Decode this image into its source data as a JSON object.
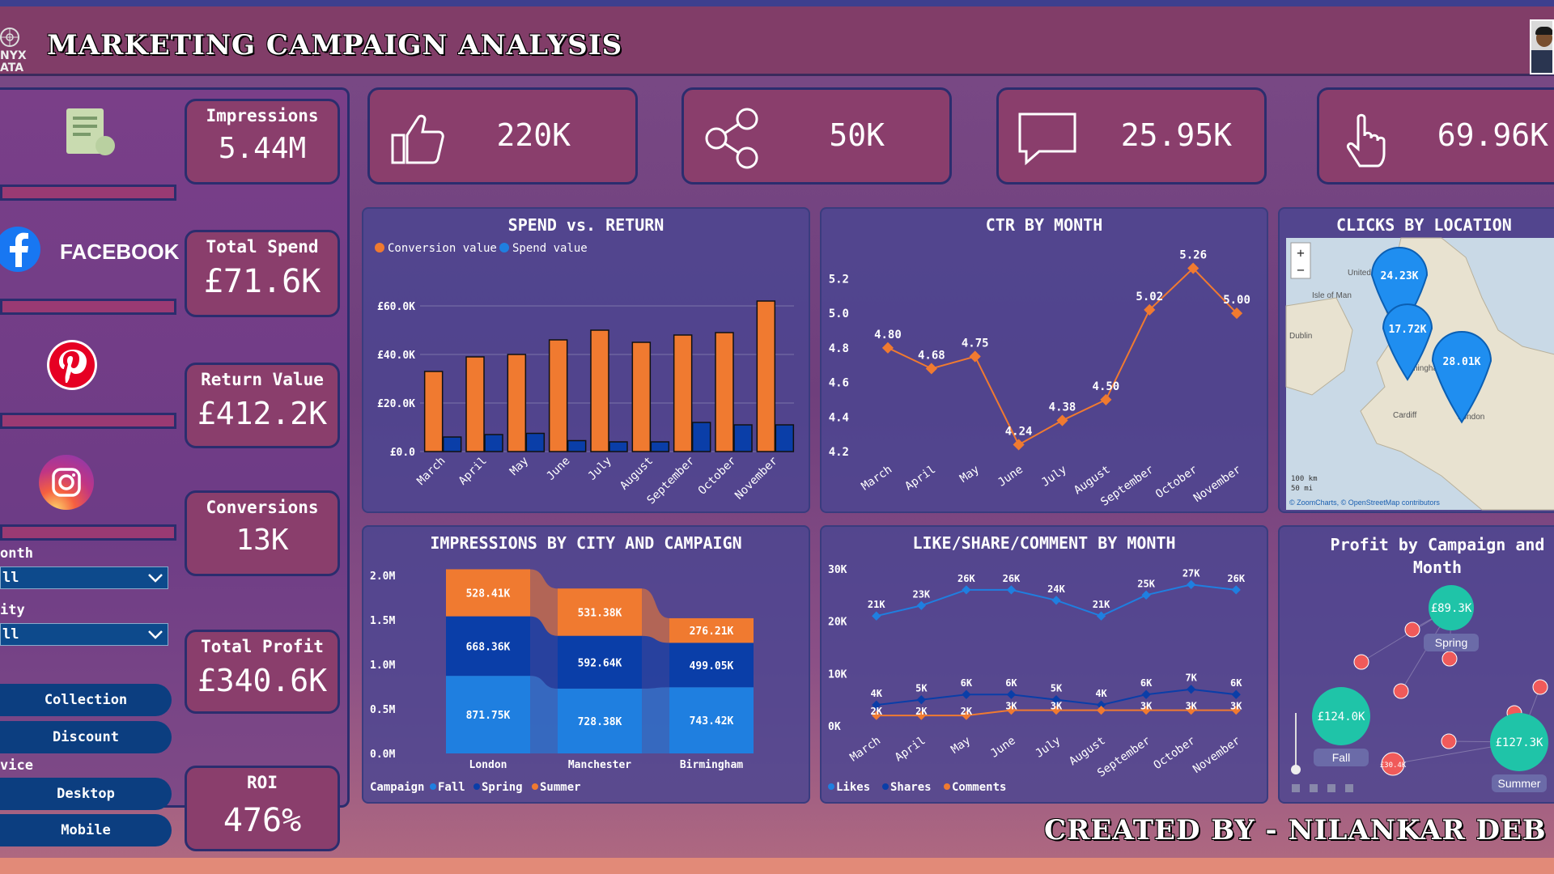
{
  "header": {
    "title": "MARKETING CAMPAIGN ANALYSIS",
    "logo_text": "NYX\nATA"
  },
  "sidebar": {
    "channels": [
      {
        "name": "report",
        "icon": "report-icon"
      },
      {
        "name": "facebook",
        "label": "FACEBOOK",
        "icon": "facebook-icon"
      },
      {
        "name": "pinterest",
        "icon": "pinterest-icon"
      },
      {
        "name": "instagram",
        "icon": "instagram-icon"
      }
    ],
    "filters": [
      {
        "label": "onth",
        "value": "ll"
      },
      {
        "label": "ity",
        "value": "ll"
      }
    ],
    "campaign_buttons": [
      "Collection",
      "Discount"
    ],
    "device_label": "vice",
    "device_buttons": [
      "Desktop",
      "Mobile"
    ]
  },
  "kpis": [
    {
      "label": "Impressions",
      "value": "5.44M"
    },
    {
      "label": "Total Spend",
      "value": "£71.6K"
    },
    {
      "label": "Return Value",
      "value": "£412.2K"
    },
    {
      "label": "Conversions",
      "value": "13K"
    },
    {
      "label": "Total Profit",
      "value": "£340.6K"
    },
    {
      "label": "ROI",
      "value": "476%"
    }
  ],
  "top_cards": [
    {
      "icon": "thumbs-up-icon",
      "value": "220K"
    },
    {
      "icon": "share-icon",
      "value": "50K"
    },
    {
      "icon": "comment-icon",
      "value": "25.95K"
    },
    {
      "icon": "click-hand-icon",
      "value": "69.96K"
    }
  ],
  "footer": {
    "text": "CREATED BY - NILANKAR DEB"
  },
  "colors": {
    "orange": "#f07a30",
    "blue": "#1f7fe0",
    "dark_blue": "#0a3ea8",
    "teal": "#1fc4a8",
    "red": "#f05a5a"
  },
  "chart_data": [
    {
      "type": "bar",
      "title": "SPEND vs. RETURN",
      "categories": [
        "March",
        "April",
        "May",
        "June",
        "July",
        "August",
        "September",
        "October",
        "November"
      ],
      "series": [
        {
          "name": "Conversion value",
          "values": [
            33,
            39,
            40,
            46,
            50,
            45,
            48,
            49,
            62
          ]
        },
        {
          "name": "Spend value",
          "values": [
            6,
            7,
            7.5,
            4.5,
            4,
            4,
            12,
            11,
            11
          ]
        }
      ],
      "yticks": [
        "£0.0",
        "£20.0K",
        "£40.0K",
        "£60.0K"
      ],
      "ylim": [
        0,
        70
      ],
      "legend": "top-left"
    },
    {
      "type": "line",
      "title": "CTR BY MONTH",
      "categories": [
        "March",
        "April",
        "May",
        "June",
        "July",
        "August",
        "September",
        "October",
        "November"
      ],
      "values": [
        4.8,
        4.68,
        4.75,
        4.24,
        4.38,
        4.5,
        5.02,
        5.26,
        5.0
      ],
      "labels": [
        "4.80",
        "4.68",
        "4.75",
        "4.24",
        "4.38",
        "4.50",
        "5.02",
        "5.26",
        "5.00"
      ],
      "yticks": [
        "4.2",
        "4.4",
        "4.6",
        "4.8",
        "5.0",
        "5.2"
      ],
      "ylim": [
        4.2,
        5.3
      ]
    },
    {
      "type": "map",
      "title": "CLICKS BY LOCATION",
      "markers": [
        {
          "label": "24.23K"
        },
        {
          "label": "17.72K"
        },
        {
          "label": "28.01K"
        }
      ],
      "place_labels": [
        "United K",
        "Isle of Man",
        "Dublin",
        "Birmingham",
        "Cardiff",
        "London"
      ],
      "scale": [
        "100 km",
        "50 mi"
      ],
      "attribution": "© ZoomCharts, © OpenStreetMap contributors"
    },
    {
      "type": "bar",
      "title": "IMPRESSIONS BY CITY AND CAMPAIGN",
      "categories": [
        "London",
        "Manchester",
        "Birmingham"
      ],
      "series": [
        {
          "name": "Fall",
          "values": [
            871.75,
            728.38,
            743.42
          ],
          "labels": [
            "871.75K",
            "728.38K",
            "743.42K"
          ]
        },
        {
          "name": "Spring",
          "values": [
            668.36,
            592.64,
            499.05
          ],
          "labels": [
            "668.36K",
            "592.64K",
            "499.05K"
          ]
        },
        {
          "name": "Summer",
          "values": [
            528.41,
            531.38,
            276.21
          ],
          "labels": [
            "528.41K",
            "531.38K",
            "276.21K"
          ]
        }
      ],
      "yticks": [
        "0.0M",
        "0.5M",
        "1.0M",
        "1.5M",
        "2.0M"
      ],
      "ylim": [
        0,
        2000
      ],
      "legend_title": "Campaign"
    },
    {
      "type": "line",
      "title": "LIKE/SHARE/COMMENT BY MONTH",
      "categories": [
        "March",
        "April",
        "May",
        "June",
        "July",
        "August",
        "September",
        "October",
        "November"
      ],
      "series": [
        {
          "name": "Likes",
          "values": [
            21,
            23,
            26,
            26,
            24,
            21,
            25,
            27,
            26
          ],
          "labels": [
            "21K",
            "23K",
            "26K",
            "26K",
            "24K",
            "21K",
            "25K",
            "27K",
            "26K"
          ]
        },
        {
          "name": "Shares",
          "values": [
            4,
            5,
            6,
            6,
            5,
            4,
            6,
            7,
            6
          ],
          "labels": [
            "4K",
            "5K",
            "6K",
            "6K",
            "5K",
            "4K",
            "6K",
            "7K",
            "6K"
          ]
        },
        {
          "name": "Comments",
          "values": [
            2,
            2,
            2,
            3,
            3,
            3,
            3,
            3,
            3
          ],
          "labels": [
            "2K",
            "2K",
            "2K",
            "3K",
            "3K",
            "",
            "3K",
            "3K",
            "3K"
          ]
        }
      ],
      "yticks": [
        "0K",
        "10K",
        "20K",
        "30K"
      ],
      "ylim": [
        0,
        30
      ]
    },
    {
      "type": "scatter",
      "title": "Profit by Campaign and Month",
      "big_bubbles": [
        {
          "label": "£89.3K",
          "caption": "Spring"
        },
        {
          "label": "£124.0K",
          "caption": "Fall"
        },
        {
          "label": "£127.3K",
          "caption": "Summer"
        }
      ],
      "small_bubble_label": "£30.4K"
    }
  ]
}
